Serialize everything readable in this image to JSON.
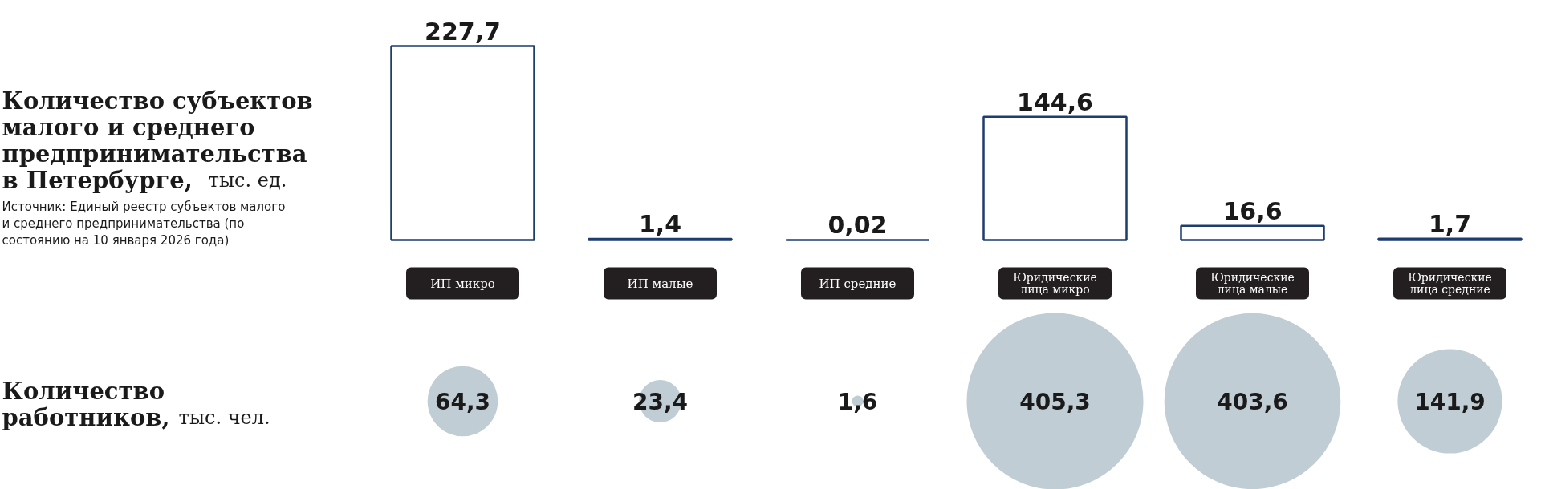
{
  "chart_data": [
    {
      "type": "bar",
      "title": "Количество субъектов малого и среднего предпринимательства в Петербурге, тыс. ед.",
      "annotations": [
        "Источник: Единый реестр субъектов малого и среднего предпринимательства (по состоянию на 10 января 2026 года)"
      ],
      "categories": [
        "ИП микро",
        "ИП малые",
        "ИП средние",
        "Юридические лица микро",
        "Юридические лица малые",
        "Юридические лица средние"
      ],
      "values": [
        227.7,
        1.4,
        0.02,
        144.6,
        16.6,
        1.7
      ],
      "color": "#1c3d6e",
      "value_labels": [
        "227,7",
        "1,4",
        "0,02",
        "144,6",
        "16,6",
        "1,7"
      ]
    },
    {
      "type": "other",
      "title": "Количество работников, тыс. чел.",
      "categories": [
        null,
        null,
        null,
        null,
        null,
        null
      ],
      "values": [
        64.3,
        23.4,
        1.6,
        405.3,
        403.6,
        141.9
      ],
      "color": "#c1cdd5",
      "value_labels": [
        "64,3",
        "23,4",
        "1,6",
        "405,3",
        "403,6",
        "141,9"
      ]
    }
  ]
}
